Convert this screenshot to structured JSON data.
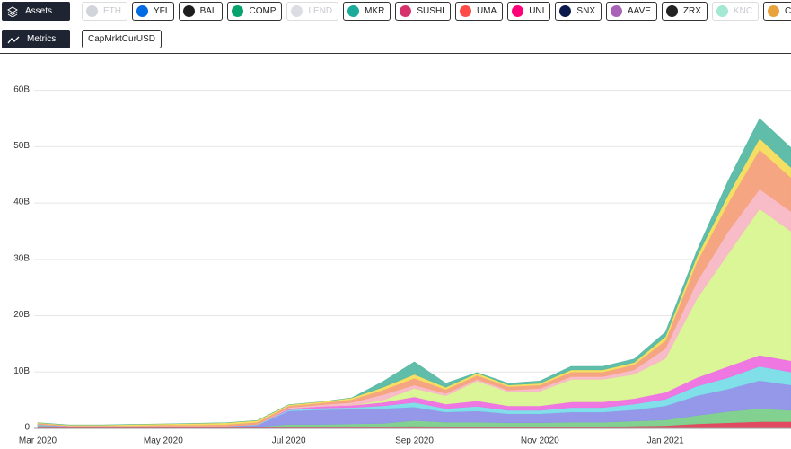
{
  "toolbar": {
    "assets_label": "Assets",
    "metrics_label": "Metrics",
    "metric": "CapMrktCurUSD",
    "assets": [
      {
        "name": "ETH",
        "color": "#9aa0b0",
        "disabled": true
      },
      {
        "name": "YFI",
        "color": "#006ae3",
        "disabled": false
      },
      {
        "name": "BAL",
        "color": "#1e1e1e",
        "disabled": false
      },
      {
        "name": "COMP",
        "color": "#07a36f",
        "disabled": false
      },
      {
        "name": "LEND",
        "color": "#b0b4c0",
        "disabled": true
      },
      {
        "name": "MKR",
        "color": "#1aab9b",
        "disabled": false
      },
      {
        "name": "SUSHI",
        "color": "#d6336c",
        "disabled": false
      },
      {
        "name": "UMA",
        "color": "#ff4a4a",
        "disabled": false
      },
      {
        "name": "UNI",
        "color": "#ff007a",
        "disabled": false
      },
      {
        "name": "SNX",
        "color": "#0b1a4a",
        "disabled": false
      },
      {
        "name": "AAVE",
        "color": "#a862b8",
        "disabled": false
      },
      {
        "name": "ZRX",
        "color": "#222222",
        "disabled": false
      },
      {
        "name": "KNC",
        "color": "#31cb9e",
        "disabled": true
      },
      {
        "name": "CRV",
        "color": "#e8a33c",
        "disabled": false
      }
    ]
  },
  "chart_data": {
    "type": "stacked_area",
    "categories": [
      "Mar 2020",
      null,
      null,
      null,
      "May 2020",
      null,
      null,
      null,
      "Jul 2020",
      null,
      null,
      null,
      "Sep 2020",
      null,
      null,
      null,
      "Nov 2020",
      null,
      null,
      null,
      "Jan 2021",
      null,
      null,
      null,
      null
    ],
    "ylim": [
      0,
      66
    ],
    "yticks": [
      0,
      {
        "value": 10,
        "label": "10B"
      },
      {
        "value": 20,
        "label": "20B"
      },
      {
        "value": 30,
        "label": "30B"
      },
      {
        "value": 40,
        "label": "40B"
      },
      {
        "value": 50,
        "label": "50B"
      },
      {
        "value": 60,
        "label": "60B"
      }
    ],
    "grid": true,
    "series": [
      {
        "color": "#e0405a",
        "values": [
          0.3,
          0.2,
          0.2,
          0.2,
          0.2,
          0.2,
          0.2,
          0.2,
          0.3,
          0.3,
          0.3,
          0.3,
          0.4,
          0.3,
          0.3,
          0.3,
          0.3,
          0.3,
          0.3,
          0.4,
          0.5,
          0.8,
          1.0,
          1.2,
          1.2
        ]
      },
      {
        "color": "#7ccf8a",
        "values": [
          0.2,
          0.1,
          0.1,
          0.1,
          0.1,
          0.1,
          0.1,
          0.1,
          0.4,
          0.4,
          0.5,
          0.6,
          1.0,
          0.8,
          0.8,
          0.7,
          0.7,
          0.8,
          0.8,
          0.9,
          1.0,
          1.5,
          2.0,
          2.3,
          2.0
        ]
      },
      {
        "color": "#8f92e8",
        "values": [
          0.1,
          0.1,
          0.1,
          0.1,
          0.1,
          0.1,
          0.1,
          0.3,
          2.4,
          2.6,
          2.6,
          2.6,
          2.4,
          1.8,
          2.0,
          1.6,
          1.6,
          1.8,
          1.8,
          2.0,
          2.5,
          3.5,
          4.0,
          5.0,
          4.5
        ]
      },
      {
        "color": "#79dde8",
        "values": [
          0.1,
          0,
          0,
          0,
          0,
          0,
          0,
          0.1,
          0.2,
          0.3,
          0.3,
          0.5,
          0.8,
          0.6,
          0.8,
          0.6,
          0.6,
          0.8,
          0.8,
          1.0,
          1.2,
          1.7,
          2.0,
          2.5,
          2.3
        ]
      },
      {
        "color": "#ee70e0",
        "values": [
          0,
          0,
          0,
          0,
          0,
          0,
          0,
          0,
          0.2,
          0.3,
          0.4,
          0.6,
          1.0,
          0.8,
          1.0,
          0.8,
          0.8,
          1.0,
          1.0,
          1.0,
          1.2,
          1.5,
          2.0,
          2.0,
          2.0
        ]
      },
      {
        "color": "#d8f590",
        "values": [
          0,
          0,
          0,
          0,
          0,
          0,
          0,
          0,
          0,
          0,
          0,
          0.4,
          1.5,
          1.5,
          3.5,
          2.5,
          2.6,
          4.0,
          4.0,
          4.3,
          6.0,
          14,
          20,
          26,
          23
        ]
      },
      {
        "color": "#f7b8c4",
        "values": [
          0,
          0,
          0,
          0,
          0,
          0,
          0,
          0,
          0.2,
          0.3,
          0.5,
          1.0,
          0.6,
          0.4,
          0.3,
          0.3,
          0.5,
          0.5,
          0.5,
          0.8,
          1.8,
          3.0,
          4.0,
          3.5,
          3.5
        ]
      },
      {
        "color": "#f5a07c",
        "values": [
          0.2,
          0.1,
          0.1,
          0.1,
          0.2,
          0.2,
          0.3,
          0.4,
          0.3,
          0.3,
          0.5,
          0.8,
          1.2,
          0.7,
          0.7,
          0.6,
          0.6,
          0.8,
          0.8,
          0.9,
          1.4,
          3.5,
          5.0,
          7.0,
          6.0
        ]
      },
      {
        "color": "#f3dc5c",
        "values": [
          0.1,
          0.1,
          0.1,
          0.2,
          0.2,
          0.3,
          0.3,
          0.3,
          0.2,
          0.2,
          0.3,
          0.5,
          0.7,
          0.4,
          0.4,
          0.3,
          0.3,
          0.4,
          0.4,
          0.4,
          0.7,
          1.0,
          1.5,
          2.0,
          1.8
        ]
      },
      {
        "color": "#56b9a4",
        "values": [
          0,
          0,
          0,
          0,
          0,
          0,
          0,
          0,
          0,
          0,
          0,
          1.0,
          2.2,
          0.7,
          0.1,
          0.3,
          0.4,
          0.6,
          0.6,
          0.6,
          0.8,
          1.0,
          2.5,
          3.5,
          3.5
        ]
      }
    ]
  }
}
